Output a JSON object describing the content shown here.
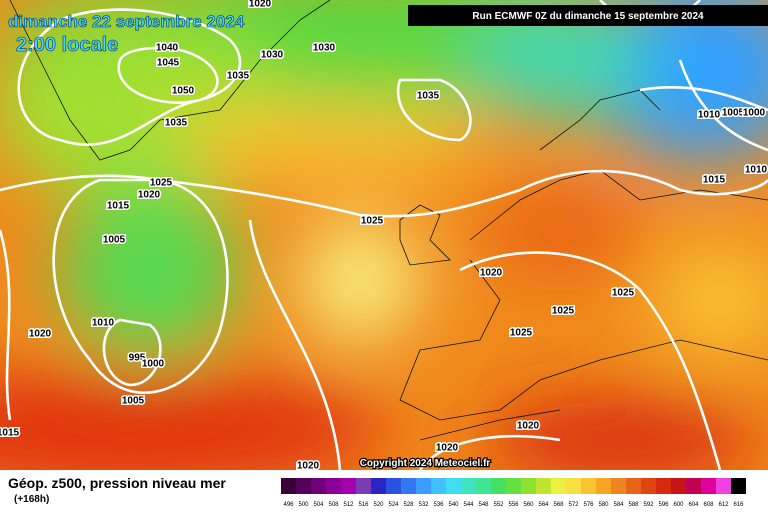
{
  "header": {
    "date": "dimanche 22 septembre 2024",
    "time": "2:00 locale",
    "run": "Run ECMWF 0Z du dimanche 15 septembre 2024"
  },
  "copyright": "Copyright 2024 Meteociel.fr",
  "footer": {
    "title": "Géop. z500, pression niveau mer",
    "lead": "(+168h)"
  },
  "isobar_labels": [
    "1020",
    "1040",
    "1045",
    "1050",
    "1035",
    "1030",
    "1030",
    "1035",
    "1035",
    "1025",
    "1020",
    "1015",
    "1005",
    "1010",
    "995",
    "1000",
    "1005",
    "1020",
    "1015",
    "1025",
    "1020",
    "1025",
    "1025",
    "1025",
    "1020",
    "1020",
    "1020",
    "1010",
    "1005",
    "1000",
    "1015",
    "1010"
  ],
  "colorbar": {
    "values": [
      496,
      500,
      504,
      508,
      512,
      516,
      520,
      524,
      528,
      532,
      536,
      540,
      544,
      548,
      552,
      556,
      560,
      564,
      568,
      572,
      576,
      580,
      584,
      588,
      592,
      596,
      600,
      604,
      608,
      612,
      616
    ],
    "colors": [
      "#3a0038",
      "#55005a",
      "#70007a",
      "#8c0096",
      "#a400b0",
      "#7a3cb4",
      "#2a24c8",
      "#2c50e0",
      "#3478f0",
      "#3c9cff",
      "#40c0ff",
      "#40dcf0",
      "#40e4c4",
      "#40e494",
      "#44e064",
      "#64e040",
      "#90e030",
      "#c0e430",
      "#ecf040",
      "#f8e040",
      "#f8c430",
      "#f8a424",
      "#f08420",
      "#e86418",
      "#e04412",
      "#d82810",
      "#c81414",
      "#c00050",
      "#e0009c",
      "#f040e0",
      "#000000"
    ]
  }
}
